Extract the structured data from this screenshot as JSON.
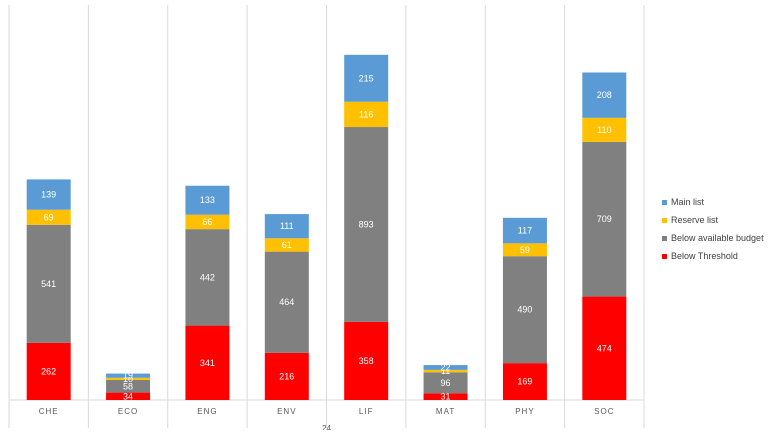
{
  "chart_data": {
    "type": "bar",
    "stacked": true,
    "categories": [
      "CHE",
      "ECO",
      "ENG",
      "ENV",
      "LIF",
      "MAT",
      "PHY",
      "SOC"
    ],
    "group_label": "24",
    "series": [
      {
        "name": "Below Threshold",
        "color": "#ff0000",
        "values": [
          262,
          34,
          341,
          216,
          358,
          31,
          169,
          474
        ]
      },
      {
        "name": "Below available budget",
        "color": "#808080",
        "values": [
          541,
          58,
          442,
          464,
          893,
          96,
          490,
          709
        ]
      },
      {
        "name": "Reserve list",
        "color": "#ffc000",
        "values": [
          69,
          10,
          66,
          61,
          116,
          11,
          59,
          110
        ]
      },
      {
        "name": "Main list",
        "color": "#5b9bd5",
        "values": [
          139,
          19,
          133,
          111,
          215,
          22,
          117,
          208
        ]
      }
    ],
    "legend_order": [
      "Main list",
      "Reserve list",
      "Below available budget",
      "Below Threshold"
    ],
    "legend_position": "right",
    "ylim": [
      0,
      1600
    ],
    "gridlines": "vertical category separators"
  }
}
